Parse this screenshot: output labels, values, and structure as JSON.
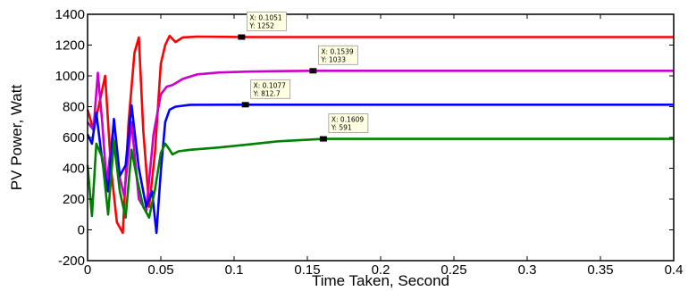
{
  "chart_data": {
    "type": "line",
    "xlabel": "Time Taken, Second",
    "ylabel": "PV Power, Watt",
    "xlim": [
      0,
      0.4
    ],
    "ylim": [
      -200,
      1400
    ],
    "grid": false,
    "legend": "none",
    "x_ticks": [
      0,
      0.05,
      0.1,
      0.15,
      0.2,
      0.25,
      0.3,
      0.35,
      0.4
    ],
    "x_tick_labels": [
      "0",
      "0.05",
      "0.1",
      "0.15",
      "0.2",
      "0.25",
      "0.3",
      "0.35",
      "0.4"
    ],
    "y_ticks": [
      -200,
      0,
      200,
      400,
      600,
      800,
      1000,
      1200,
      1400
    ],
    "y_tick_labels": [
      "-200",
      "0",
      "200",
      "400",
      "600",
      "800",
      "1000",
      "1200",
      "1400"
    ],
    "series": [
      {
        "color": "#ff0000",
        "x": [
          0,
          0.004,
          0.008,
          0.012,
          0.016,
          0.02,
          0.024,
          0.028,
          0.032,
          0.035,
          0.038,
          0.042,
          0.046,
          0.05,
          0.053,
          0.056,
          0.06,
          0.065,
          0.075,
          0.1051,
          0.15,
          0.2,
          0.3,
          0.4
        ],
        "y": [
          780,
          650,
          820,
          1000,
          400,
          50,
          -20,
          700,
          1150,
          1250,
          650,
          150,
          500,
          1080,
          1200,
          1260,
          1220,
          1250,
          1255,
          1252,
          1252,
          1252,
          1252,
          1252
        ]
      },
      {
        "color": "#cc00cc",
        "x": [
          0,
          0.004,
          0.007,
          0.01,
          0.013,
          0.017,
          0.02,
          0.025,
          0.03,
          0.035,
          0.04,
          0.045,
          0.05,
          0.054,
          0.058,
          0.065,
          0.075,
          0.09,
          0.11,
          0.13,
          0.1539,
          0.2,
          0.3,
          0.4
        ],
        "y": [
          700,
          650,
          1020,
          700,
          300,
          620,
          420,
          220,
          700,
          200,
          120,
          620,
          880,
          930,
          940,
          980,
          1010,
          1022,
          1028,
          1031,
          1033,
          1033,
          1033,
          1033
        ]
      },
      {
        "color": "#0000ff",
        "x": [
          0,
          0.003,
          0.006,
          0.01,
          0.014,
          0.018,
          0.022,
          0.026,
          0.03,
          0.035,
          0.04,
          0.044,
          0.047,
          0.05,
          0.053,
          0.056,
          0.06,
          0.07,
          0.1077,
          0.2,
          0.3,
          0.4
        ],
        "y": [
          620,
          560,
          760,
          450,
          250,
          720,
          350,
          420,
          810,
          400,
          150,
          250,
          -20,
          380,
          700,
          780,
          800,
          812,
          812.7,
          812.7,
          812.7,
          812.7
        ]
      },
      {
        "color": "#008000",
        "x": [
          0,
          0.003,
          0.006,
          0.01,
          0.014,
          0.018,
          0.022,
          0.026,
          0.03,
          0.034,
          0.038,
          0.042,
          0.046,
          0.05,
          0.053,
          0.056,
          0.058,
          0.062,
          0.07,
          0.09,
          0.11,
          0.13,
          0.16,
          0.1609,
          0.2,
          0.3,
          0.4
        ],
        "y": [
          420,
          90,
          560,
          470,
          100,
          580,
          250,
          80,
          520,
          320,
          150,
          80,
          260,
          500,
          560,
          520,
          490,
          510,
          520,
          535,
          555,
          575,
          590,
          591,
          591,
          591,
          591
        ]
      }
    ],
    "annotations": [
      {
        "x": 0.1051,
        "y": 1252,
        "line1": "X: 0.1051",
        "line2": "Y: 1252"
      },
      {
        "x": 0.1539,
        "y": 1033,
        "line1": "X: 0.1539",
        "line2": "Y: 1033"
      },
      {
        "x": 0.1077,
        "y": 812.7,
        "line1": "X: 0.1077",
        "line2": "Y: 812.7"
      },
      {
        "x": 0.1609,
        "y": 591,
        "line1": "X: 0.1609",
        "line2": "Y: 591"
      }
    ]
  }
}
